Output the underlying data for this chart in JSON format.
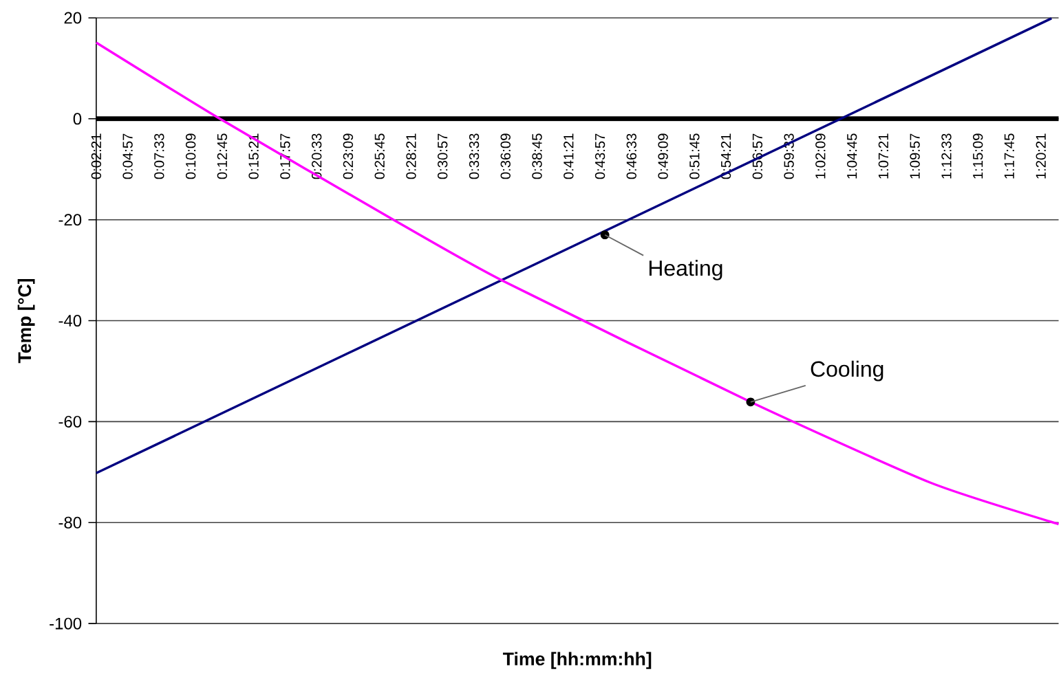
{
  "chart_data": {
    "type": "line",
    "xlabel": "Time [hh:mm:hh]",
    "ylabel": "Temp [°C]",
    "xlim": [
      0.0392,
      1.3636
    ],
    "ylim": [
      -100,
      20
    ],
    "xticks": [
      {
        "value": 0.0392,
        "label": "0:02:21"
      },
      {
        "value": 0.0825,
        "label": "0:04:57"
      },
      {
        "value": 0.1258,
        "label": "0:07:33"
      },
      {
        "value": 0.1692,
        "label": "0:10:09"
      },
      {
        "value": 0.2125,
        "label": "0:12:45"
      },
      {
        "value": 0.2558,
        "label": "0:15:21"
      },
      {
        "value": 0.2992,
        "label": "0:17:57"
      },
      {
        "value": 0.3425,
        "label": "0:20:33"
      },
      {
        "value": 0.3858,
        "label": "0:23:09"
      },
      {
        "value": 0.4292,
        "label": "0:25:45"
      },
      {
        "value": 0.4725,
        "label": "0:28:21"
      },
      {
        "value": 0.5158,
        "label": "0:30:57"
      },
      {
        "value": 0.5592,
        "label": "0:33:33"
      },
      {
        "value": 0.6025,
        "label": "0:36:09"
      },
      {
        "value": 0.6458,
        "label": "0:38:45"
      },
      {
        "value": 0.6892,
        "label": "0:41:21"
      },
      {
        "value": 0.7325,
        "label": "0:43:57"
      },
      {
        "value": 0.7758,
        "label": "0:46:33"
      },
      {
        "value": 0.8192,
        "label": "0:49:09"
      },
      {
        "value": 0.8625,
        "label": "0:51:45"
      },
      {
        "value": 0.9058,
        "label": "0:54:21"
      },
      {
        "value": 0.9492,
        "label": "0:56:57"
      },
      {
        "value": 0.9925,
        "label": "0:59:33"
      },
      {
        "value": 1.0358,
        "label": "1:02:09"
      },
      {
        "value": 1.0792,
        "label": "1:04:45"
      },
      {
        "value": 1.1225,
        "label": "1:07:21"
      },
      {
        "value": 1.1658,
        "label": "1:09:57"
      },
      {
        "value": 1.2092,
        "label": "1:12:33"
      },
      {
        "value": 1.2525,
        "label": "1:15:09"
      },
      {
        "value": 1.2958,
        "label": "1:17:45"
      },
      {
        "value": 1.3392,
        "label": "1:20:21"
      }
    ],
    "yticks": [
      -100,
      -80,
      -60,
      -40,
      -20,
      0,
      20
    ],
    "grid": "y",
    "marker": "none",
    "line_style": "solid",
    "series": [
      {
        "color": "#000080",
        "x": [
          0.0392,
          1.3539
        ],
        "values": [
          -70.2,
          19.9
        ]
      },
      {
        "color": "#ff00ff",
        "x": [
          0.0392,
          0.2094,
          0.4421,
          0.5972,
          0.9397,
          1.1874,
          1.3636
        ],
        "values": [
          15.1,
          0,
          -19.5,
          -32,
          -56.1,
          -72.1,
          -80.3
        ]
      }
    ],
    "annotations": [
      {
        "text": "Heating",
        "x": 0.7392,
        "y": -23
      },
      {
        "text": "Cooling",
        "x": 0.9397,
        "y": -56.1
      }
    ]
  }
}
